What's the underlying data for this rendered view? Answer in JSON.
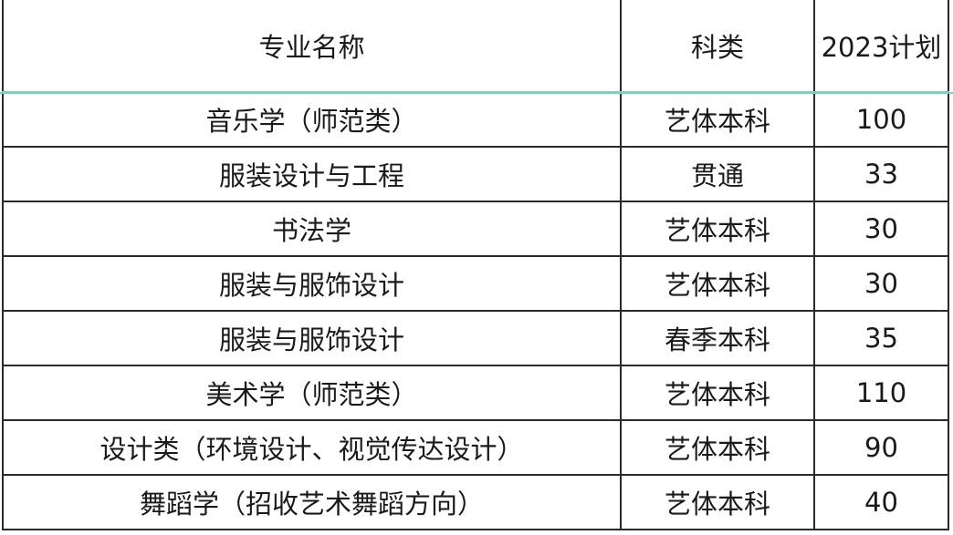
{
  "header": {
    "name": "专业名称",
    "category": "科类",
    "plan": "2023计划"
  },
  "accent_line_color": "#7fcfc0",
  "rows": [
    {
      "name": "音乐学（师范类）",
      "category": "艺体本科",
      "plan": "100"
    },
    {
      "name": "服装设计与工程",
      "category": "贯通",
      "plan": "33"
    },
    {
      "name": "书法学",
      "category": "艺体本科",
      "plan": "30"
    },
    {
      "name": "服装与服饰设计",
      "category": "艺体本科",
      "plan": "30"
    },
    {
      "name": "服装与服饰设计",
      "category": "春季本科",
      "plan": "35"
    },
    {
      "name": "美术学（师范类）",
      "category": "艺体本科",
      "plan": "110"
    },
    {
      "name": "设计类（环境设计、视觉传达设计）",
      "category": "艺体本科",
      "plan": "90"
    },
    {
      "name": "舞蹈学（招收艺术舞蹈方向）",
      "category": "艺体本科",
      "plan": "40"
    }
  ]
}
